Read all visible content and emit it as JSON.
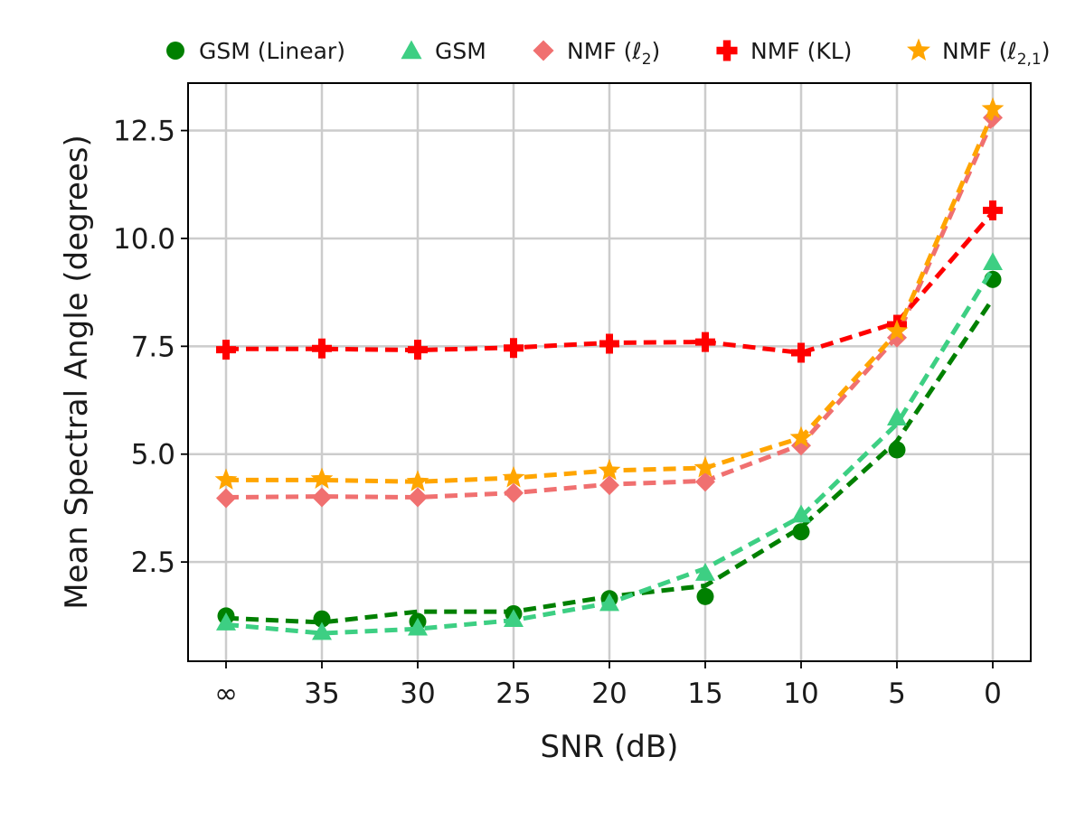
{
  "chart_data": {
    "type": "line",
    "xlabel": "SNR (dB)",
    "ylabel": "Mean Spectral Angle (degrees)",
    "categories": [
      "∞",
      "35",
      "30",
      "25",
      "20",
      "15",
      "10",
      "5",
      "0"
    ],
    "ylim": [
      0.2,
      13.6
    ],
    "yticks": [
      "2.5",
      "5.0",
      "7.5",
      "10.0",
      "12.5"
    ],
    "grid": true,
    "legend_position": "top, above plot",
    "series": [
      {
        "name": "GSM (Linear)",
        "color": "#008000",
        "marker": "circle",
        "points": [
          1.25,
          1.18,
          1.12,
          1.3,
          1.65,
          1.7,
          3.2,
          5.1,
          9.05
        ],
        "fit": [
          1.2,
          1.1,
          1.35,
          1.35,
          1.7,
          1.95,
          3.3,
          5.3,
          8.6
        ]
      },
      {
        "name": "GSM",
        "color": "#3dcf83",
        "marker": "triangle",
        "points": [
          1.1,
          0.88,
          0.98,
          1.18,
          1.55,
          2.25,
          3.6,
          5.85,
          9.45
        ],
        "fit": [
          1.05,
          0.85,
          0.95,
          1.15,
          1.55,
          2.35,
          3.55,
          5.7,
          9.3
        ]
      },
      {
        "name": "NMF (ℓ2)",
        "color": "#f07070",
        "marker": "diamond",
        "points": [
          3.98,
          4.0,
          4.0,
          4.1,
          4.28,
          4.36,
          5.2,
          7.7,
          12.8
        ],
        "fit": [
          4.0,
          4.02,
          4.0,
          4.1,
          4.3,
          4.38,
          5.22,
          7.72,
          12.75
        ]
      },
      {
        "name": "NMF (KL)",
        "color": "#ff0000",
        "marker": "plus",
        "points": [
          7.42,
          7.45,
          7.42,
          7.46,
          7.56,
          7.6,
          7.35,
          8.0,
          10.65
        ],
        "fit": [
          7.44,
          7.44,
          7.41,
          7.47,
          7.58,
          7.6,
          7.35,
          8.05,
          10.6
        ]
      },
      {
        "name": "NMF (ℓ2,1)",
        "color": "#ffa500",
        "marker": "star",
        "points": [
          4.4,
          4.42,
          4.36,
          4.45,
          4.62,
          4.68,
          5.38,
          7.85,
          13.0
        ],
        "fit": [
          4.4,
          4.4,
          4.36,
          4.45,
          4.62,
          4.68,
          5.38,
          7.82,
          12.9
        ]
      }
    ]
  },
  "legend": [
    {
      "base": "GSM (Linear)",
      "sub": ""
    },
    {
      "base": "GSM",
      "sub": ""
    },
    {
      "base": "NMF (ℓ",
      "sub": "2",
      "close": ")"
    },
    {
      "base": "NMF (KL)",
      "sub": ""
    },
    {
      "base": "NMF (ℓ",
      "sub": "2,1",
      "close": ")"
    }
  ]
}
